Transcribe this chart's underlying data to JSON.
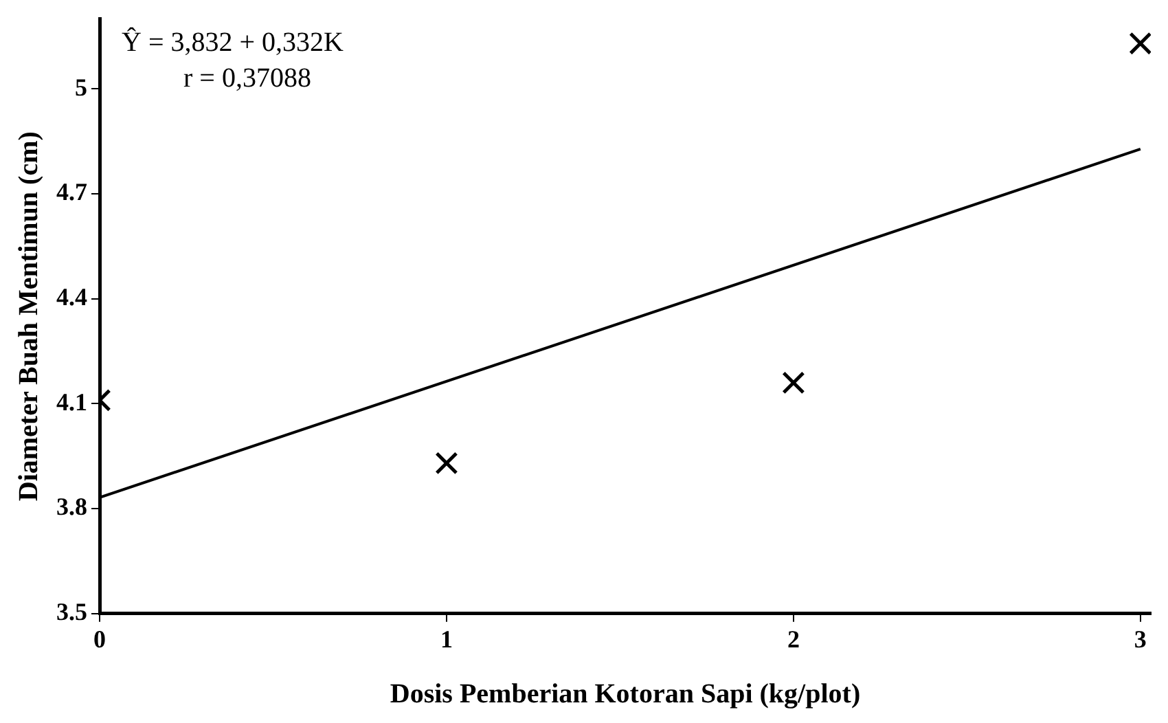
{
  "chart_data": {
    "type": "scatter",
    "xlabel": "Dosis Pemberian Kotoran Sapi (kg/plot)",
    "ylabel": "Diameter Buah Mentimun (cm)",
    "xlim": [
      0,
      3.03
    ],
    "xticks": [
      0,
      1,
      2,
      3
    ],
    "ylim": [
      3.5,
      5.2
    ],
    "yticks": [
      3.5,
      3.8,
      4.1,
      4.4,
      4.7,
      5
    ],
    "series": [
      {
        "type": "scatter",
        "color": "#000000",
        "marker": "cross",
        "x": [
          0,
          1,
          2,
          3
        ],
        "values": [
          4.11,
          3.93,
          4.16,
          5.13
        ]
      },
      {
        "type": "line",
        "color": "#000000",
        "marker": "none",
        "x": [
          0,
          3
        ],
        "values": [
          3.832,
          4.828
        ]
      }
    ],
    "annotations": [
      "Ŷ = 3,832 + 0,332K",
      "r = 0,37088"
    ],
    "grid": false,
    "legend": false
  }
}
